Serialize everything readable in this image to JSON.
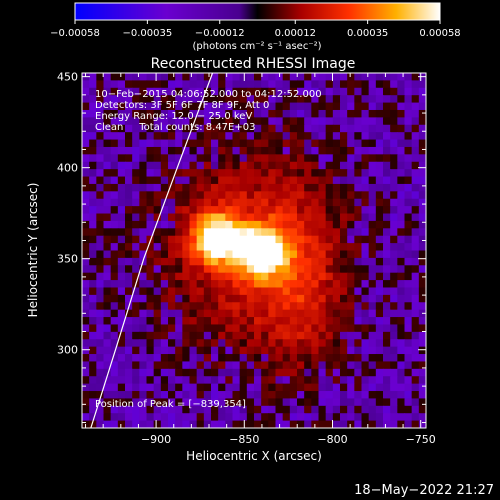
{
  "chart_data": {
    "type": "heatmap",
    "title": "Reconstructed RHESSI Image",
    "xlabel": "Heliocentric X (arcsec)",
    "ylabel": "Heliocentric Y (arcsec)",
    "xlim": [
      -942,
      -747
    ],
    "ylim": [
      257,
      452
    ],
    "x_ticks": [
      -900,
      -850,
      -800,
      -750
    ],
    "x_tick_labels": [
      "−900",
      "−850",
      "−800",
      "−750"
    ],
    "y_ticks": [
      300,
      350,
      400,
      450
    ],
    "y_tick_labels": [
      "300",
      "350",
      "400",
      "450"
    ],
    "colorbar": {
      "ticks": [
        -0.00058,
        -0.00035,
        -0.00012,
        0.00012,
        0.00035,
        0.00058
      ],
      "tick_labels": [
        "−0.00058",
        "−0.00035",
        "−0.00012",
        "0.00012",
        "0.00035",
        "0.00058"
      ],
      "units_label": "(photons cm⁻² s⁻¹ asec⁻²)",
      "range": [
        -0.00058,
        0.00058
      ]
    },
    "annotations": [
      "10−Feb−2015 04:06:52.000 to 04:12:52.000",
      "Detectors: 3F 5F 6F 7F 8F 9F, Att 0",
      "Energy Range: 12.0 − 25.0 keV",
      "Clean     Total counts: 8.47E+03"
    ],
    "peak_label": "Position of Peak = [−839,354]",
    "sources": [
      {
        "x": -866,
        "y": 361,
        "peak": 1.0
      },
      {
        "x": -840,
        "y": 354,
        "peak": 1.0
      }
    ],
    "limb_curve": [
      {
        "x": -937,
        "y": 257
      },
      {
        "x": -923,
        "y": 300
      },
      {
        "x": -907,
        "y": 350
      },
      {
        "x": -888,
        "y": 400
      },
      {
        "x": -868,
        "y": 452
      }
    ]
  },
  "footer": {
    "timestamp": "18−May−2022 21:27"
  }
}
